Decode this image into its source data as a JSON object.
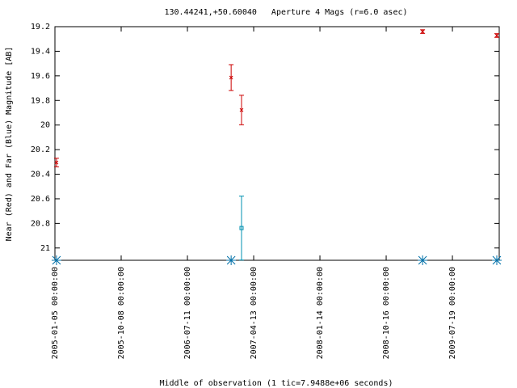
{
  "chart_data": {
    "type": "errorbar",
    "title": "130.44241,+50.60040   Aperture 4 Mags (r=6.0 asec)",
    "x_label": "Middle of observation (1 tic=7.9488e+06 seconds)",
    "y_label": "Near (Red) and Far (Blue) Magnitude [AB]",
    "xlim": [
      0,
      20.12
    ],
    "ylim": [
      19.2,
      21.1
    ],
    "invert_y": true,
    "xticks": [
      {
        "value": 0,
        "label": "2005-01-05 00:00:00"
      },
      {
        "value": 3,
        "label": "2005-10-08 00:00:00"
      },
      {
        "value": 6,
        "label": "2006-07-11 00:00:00"
      },
      {
        "value": 9,
        "label": "2007-04-13 00:00:00"
      },
      {
        "value": 12,
        "label": "2008-01-14 00:00:00"
      },
      {
        "value": 15,
        "label": "2008-10-16 00:00:00"
      },
      {
        "value": 18,
        "label": "2009-07-19 00:00:00"
      }
    ],
    "yticks": [
      19.2,
      19.4,
      19.6,
      19.8,
      20,
      20.2,
      20.4,
      20.6,
      20.8,
      21
    ],
    "series": [
      {
        "color": "#cc0000",
        "marker": "x",
        "x": [
          0.07,
          7.98,
          8.45,
          16.65,
          20.01
        ],
        "values": [
          20.305,
          19.614,
          19.878,
          19.24,
          19.272
        ],
        "errors": [
          0.035,
          0.105,
          0.12,
          0.015,
          0.015
        ]
      },
      {
        "color": "#0090b0",
        "marker": "square",
        "x": [
          8.45
        ],
        "values": [
          20.838
        ],
        "errors": [
          0.26
        ]
      },
      {
        "color": "#0070a8",
        "marker": "star",
        "x": [
          0.07,
          7.98,
          16.65,
          20.01
        ],
        "values": [
          21.1,
          21.1,
          21.1,
          21.1
        ]
      }
    ]
  }
}
